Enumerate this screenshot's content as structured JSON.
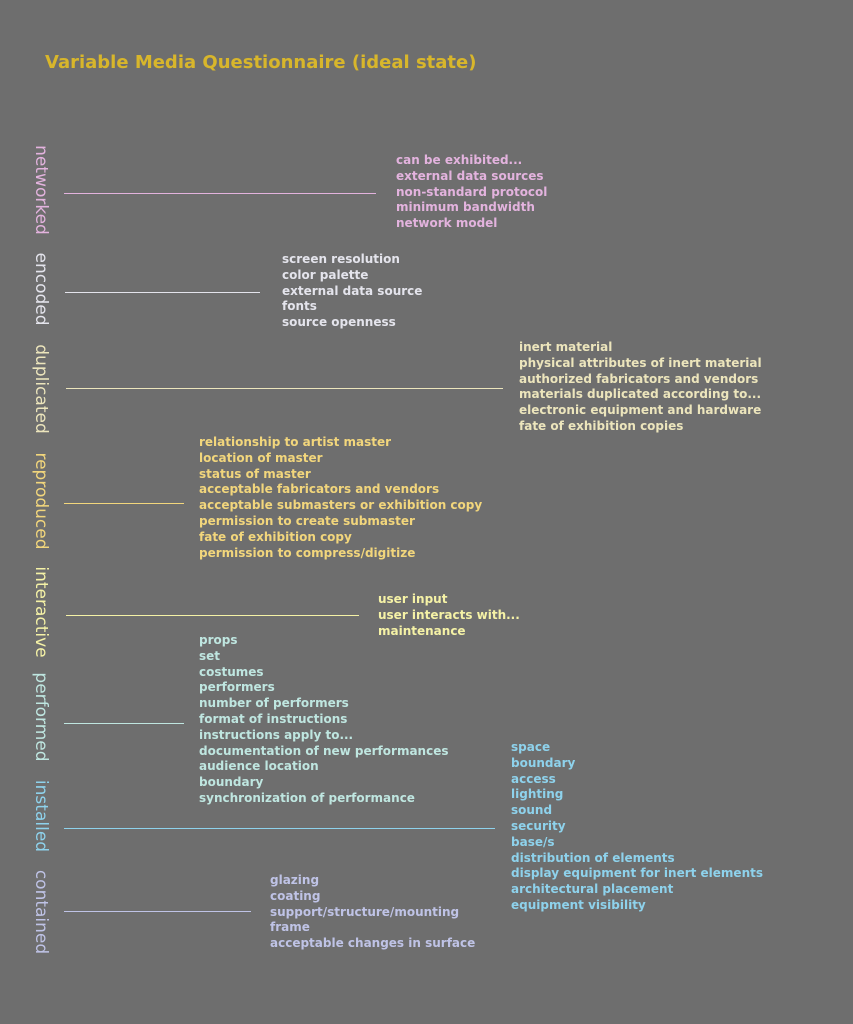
{
  "title": "Variable Media Questionnaire (ideal state)",
  "colors": {
    "background": "#6e6e6e",
    "title": "#d8b62b"
  },
  "categories": [
    {
      "label": "networked",
      "color": "#e3b3de",
      "items": [
        "can be exhibited...",
        "external data sources",
        "non-standard protocol",
        "minimum bandwidth",
        "network model"
      ]
    },
    {
      "label": "encoded",
      "color": "#e4e4ec",
      "items": [
        "screen resolution",
        "color palette",
        "external data source",
        "fonts",
        "source openness"
      ]
    },
    {
      "label": "duplicated",
      "color": "#ece5bc",
      "items": [
        "inert material",
        "physical attributes of inert material",
        "authorized fabricators and vendors",
        "materials duplicated according to...",
        "electronic equipment and hardware",
        "fate of exhibition copies"
      ]
    },
    {
      "label": "reproduced",
      "color": "#f2d67c",
      "items": [
        "relationship to artist master",
        "location of master",
        "status of master",
        "acceptable fabricators and vendors",
        "acceptable submasters or exhibition copy",
        "permission to create submaster",
        "fate of exhibition copy",
        "permission to compress/digitize"
      ]
    },
    {
      "label": "interactive",
      "color": "#f5f2a6",
      "items": [
        "user input",
        "user interacts with...",
        "maintenance"
      ]
    },
    {
      "label": "performed",
      "color": "#bfe6e0",
      "items": [
        "props",
        "set",
        "costumes",
        "performers",
        "number of performers",
        "format of instructions",
        "instructions apply to...",
        "documentation of new performances",
        "audience location",
        "boundary",
        "synchronization of performance"
      ]
    },
    {
      "label": "installed",
      "color": "#8ed2ec",
      "items": [
        "space",
        "boundary",
        "access",
        "lighting",
        "sound",
        "security",
        "base/s",
        "distribution of elements",
        "display equipment for inert elements",
        "architectural placement",
        "equipment visibility"
      ]
    },
    {
      "label": "contained",
      "color": "#bfc3e6",
      "items": [
        "glazing",
        "coating",
        "support/structure/mounting",
        "frame",
        "acceptable changes in surface"
      ]
    }
  ]
}
